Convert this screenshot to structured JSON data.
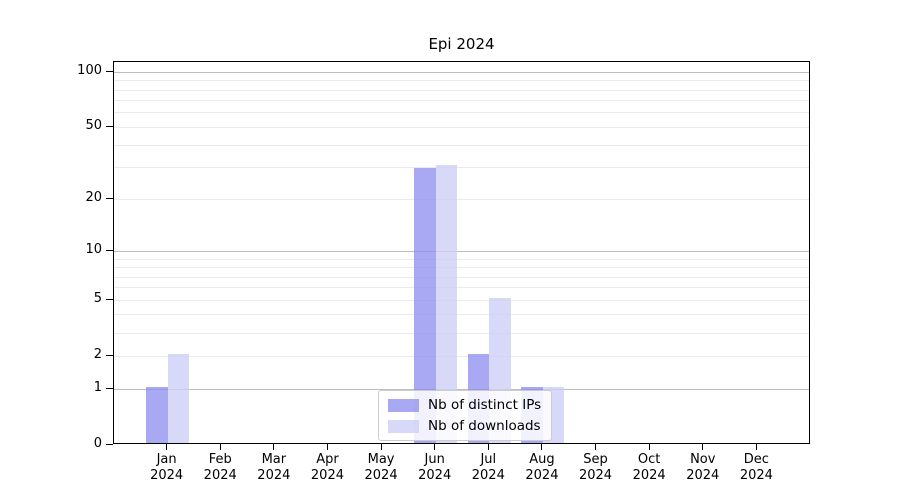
{
  "chart_data": {
    "type": "bar",
    "title": "Epi 2024",
    "categories": [
      "Jan",
      "Feb",
      "Mar",
      "Apr",
      "May",
      "Jun",
      "Jul",
      "Aug",
      "Sep",
      "Oct",
      "Nov",
      "Dec"
    ],
    "category_year": "2024",
    "series": [
      {
        "name": "Nb of distinct IPs",
        "key": "distinct-ips",
        "color": "rgba(140,140,239,0.75)",
        "values": [
          1,
          0,
          0,
          0,
          0,
          29,
          2,
          1,
          0,
          0,
          0,
          0
        ]
      },
      {
        "name": "Nb of downloads",
        "key": "downloads",
        "color": "rgba(206,206,248,0.8)",
        "values": [
          2,
          0,
          0,
          0,
          0,
          30,
          5,
          1,
          0,
          0,
          0,
          0
        ]
      }
    ],
    "yticks": [
      0,
      1,
      2,
      5,
      10,
      20,
      50,
      100
    ],
    "minor_gridlines": [
      2,
      3,
      4,
      5,
      6,
      7,
      8,
      9,
      20,
      30,
      40,
      50,
      60,
      70,
      80,
      90
    ],
    "major_gridlines": [
      1,
      10,
      100
    ],
    "scale": "log10(1+x)",
    "ylim": [
      0,
      116
    ],
    "xlabel": "",
    "ylabel": "",
    "legend": {
      "position": "lower center"
    },
    "colors": {
      "minor_grid": "#ebebeb",
      "major_grid": "#bdbdbd",
      "spine": "#000000",
      "background": "#ffffff"
    }
  }
}
